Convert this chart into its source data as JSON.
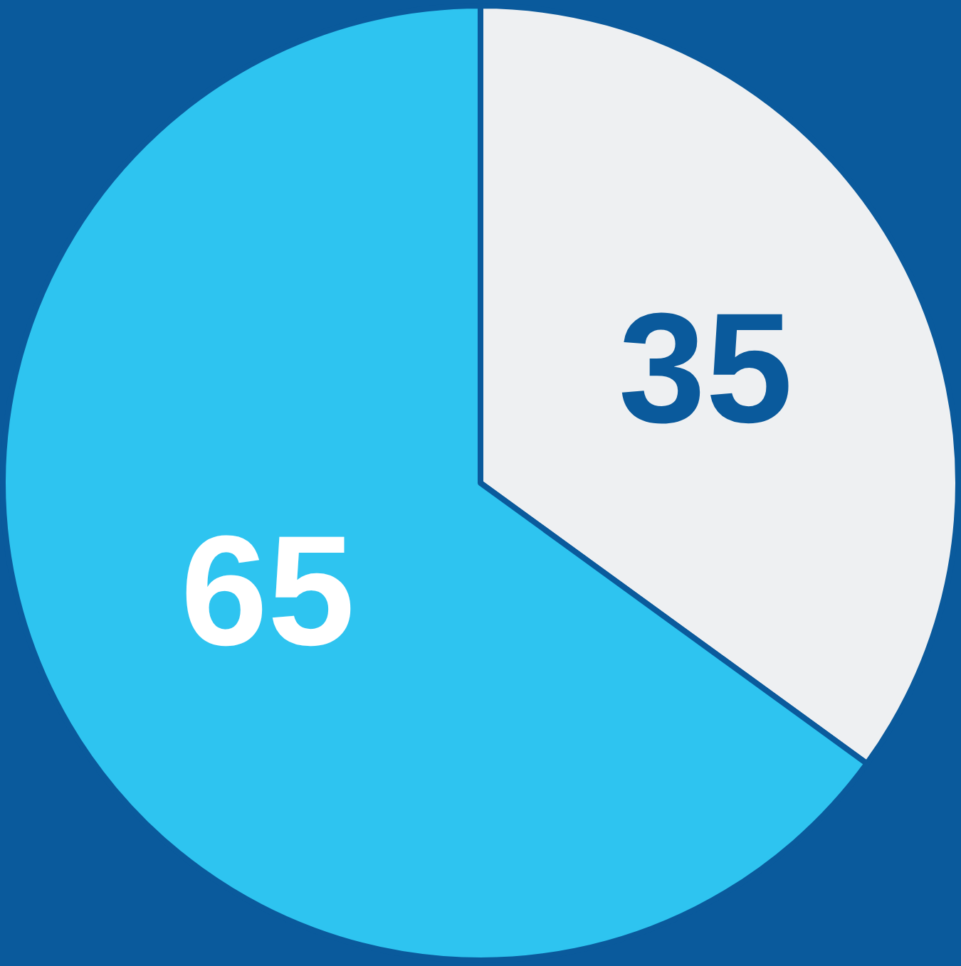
{
  "chart_data": {
    "type": "pie",
    "categories": [
      null,
      null
    ],
    "values": [
      35,
      65
    ],
    "colors": [
      "#eef0f2",
      "#2ec4f0"
    ],
    "data_labels": true
  }
}
